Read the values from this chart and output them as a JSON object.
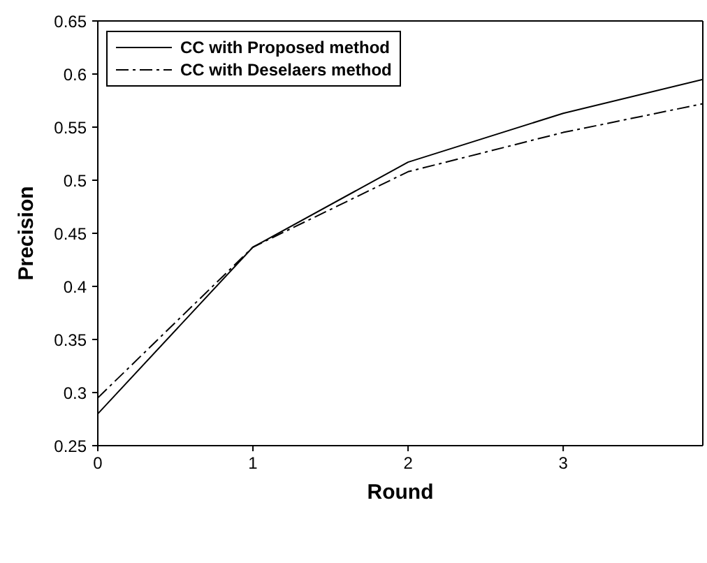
{
  "chart_data": {
    "type": "line",
    "xlabel": "Round",
    "ylabel": "Precision",
    "x": [
      0,
      1,
      2,
      3,
      3.9
    ],
    "xlim": [
      0,
      3.9
    ],
    "xticks": [
      0,
      1,
      2,
      3
    ],
    "ylim": [
      0.25,
      0.65
    ],
    "yticks": [
      0.25,
      0.3,
      0.35,
      0.4,
      0.45,
      0.5,
      0.55,
      0.6,
      0.65
    ],
    "series": [
      {
        "name": "CC with Proposed method",
        "color": "#000000",
        "line_style": "solid",
        "values": [
          0.28,
          0.437,
          0.517,
          0.563,
          0.595
        ]
      },
      {
        "name": "CC with Deselaers method",
        "color": "#000000",
        "line_style": "dashdot",
        "values": [
          0.295,
          0.437,
          0.508,
          0.545,
          0.572
        ]
      }
    ],
    "grid": false,
    "legend": "top left",
    "marker": "none"
  }
}
